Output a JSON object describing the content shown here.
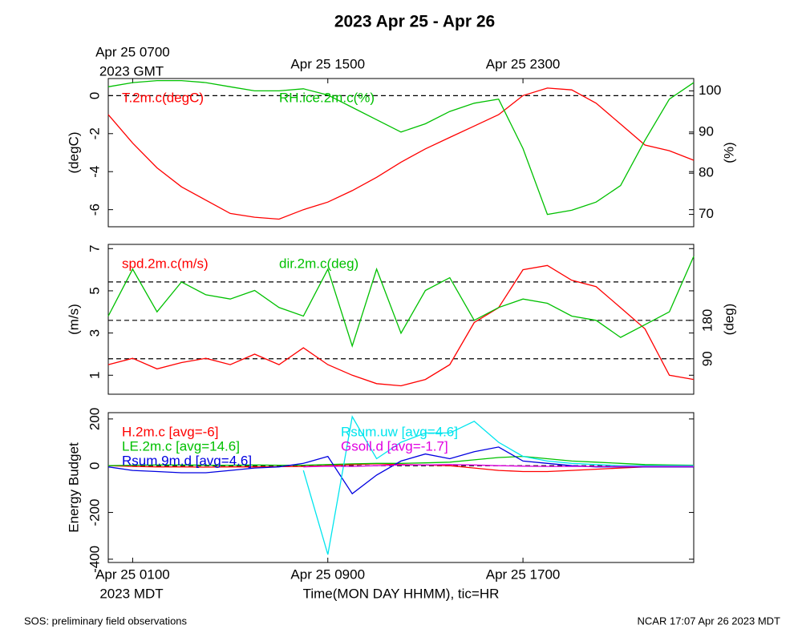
{
  "title": "2023 Apr 25 - Apr 26",
  "footer_left": "SOS: preliminary field observations",
  "footer_right": "NCAR 17:07 Apr 26 2023 MDT",
  "chart_data": [
    {
      "type": "line",
      "ylabel": "(degC)",
      "y2label": "(%)",
      "x": [
        0,
        1,
        2,
        3,
        4,
        5,
        6,
        7,
        8,
        9,
        10,
        11,
        12,
        13,
        14,
        15,
        16,
        17,
        18,
        19,
        20,
        21,
        22,
        23,
        24
      ],
      "xlim": [
        0,
        24
      ],
      "xticks": [
        {
          "value": 1,
          "label": "Apr 25 0700"
        },
        {
          "value": 9,
          "label": "Apr 25 1500"
        },
        {
          "value": 17,
          "label": "Apr 25 2300"
        }
      ],
      "xtick_note": "2023 GMT",
      "ylim": [
        -6.9,
        0.9
      ],
      "yticks": [
        0,
        -2,
        -4,
        -6
      ],
      "y2lim": [
        67,
        103
      ],
      "y2ticks": [
        70,
        80,
        90,
        100
      ],
      "hlines": [
        0
      ],
      "series": [
        {
          "name": "T.2m.c(degC)",
          "color": "#ff0000",
          "values": [
            -1.0,
            -2.5,
            -3.8,
            -4.8,
            -5.5,
            -6.2,
            -6.4,
            -6.5,
            -6.0,
            -5.6,
            -5.0,
            -4.3,
            -3.5,
            -2.8,
            -2.2,
            -1.6,
            -1.0,
            0.0,
            0.4,
            0.3,
            -0.4,
            -1.5,
            -2.6,
            -2.9,
            -3.4
          ]
        },
        {
          "name": "RH.ice.2m.c(%)",
          "color": "#00c000",
          "axis": "y2",
          "values": [
            101,
            102,
            102.5,
            102.5,
            102,
            101,
            100,
            100,
            100.5,
            99,
            96,
            93,
            90,
            92,
            95,
            97,
            98,
            86,
            70,
            71,
            73,
            77,
            88,
            98,
            102
          ]
        }
      ]
    },
    {
      "type": "line",
      "ylabel": "(m/s)",
      "y2label": "(deg)",
      "x": [
        0,
        1,
        2,
        3,
        4,
        5,
        6,
        7,
        8,
        9,
        10,
        11,
        12,
        13,
        14,
        15,
        16,
        17,
        18,
        19,
        20,
        21,
        22,
        23,
        24
      ],
      "xlim": [
        0,
        24
      ],
      "ylim": [
        0.1,
        7.2
      ],
      "yticks": [
        1,
        3,
        5,
        7
      ],
      "y2lim": [
        7,
        358
      ],
      "y2ticks": [
        90,
        180
      ],
      "y2hlines": [
        90,
        180,
        270
      ],
      "series": [
        {
          "name": "spd.2m.c(m/s)",
          "color": "#ff0000",
          "values": [
            1.5,
            1.8,
            1.3,
            1.6,
            1.8,
            1.5,
            2.0,
            1.5,
            2.3,
            1.5,
            1.0,
            0.6,
            0.5,
            0.8,
            1.5,
            3.5,
            4.2,
            6.0,
            6.2,
            5.5,
            5.2,
            4.2,
            3.2,
            1.0,
            0.8
          ]
        },
        {
          "name": "dir.2m.c(deg)",
          "color": "#00c000",
          "axis": "y2",
          "values": [
            190,
            300,
            200,
            270,
            240,
            230,
            250,
            210,
            190,
            300,
            120,
            300,
            150,
            250,
            280,
            180,
            210,
            230,
            220,
            190,
            180,
            140,
            170,
            200,
            330
          ]
        }
      ]
    },
    {
      "type": "line",
      "ylabel": "Energy Budget",
      "xlabel": "Time(MON DAY HHMM), tic=HR",
      "x": [
        0,
        1,
        2,
        3,
        4,
        5,
        6,
        7,
        8,
        9,
        10,
        11,
        12,
        13,
        14,
        15,
        16,
        17,
        18,
        19,
        20,
        21,
        22,
        23,
        24
      ],
      "xlim": [
        0,
        24
      ],
      "xticks": [
        {
          "value": 1,
          "label": "Apr 25 0100"
        },
        {
          "value": 9,
          "label": "Apr 25 0900"
        },
        {
          "value": 17,
          "label": "Apr 25 1700"
        }
      ],
      "xtick_note": "2023 MDT",
      "ylim": [
        -414,
        227
      ],
      "yticks": [
        200,
        0,
        -200,
        -400
      ],
      "hlines": [
        0
      ],
      "series": [
        {
          "name": "H.2m.c [avg=-6]",
          "color": "#ff0000",
          "values": [
            0,
            -3,
            -5,
            -5,
            -6,
            -5,
            -5,
            -4,
            -3,
            0,
            5,
            8,
            5,
            3,
            0,
            -10,
            -20,
            -25,
            -25,
            -20,
            -15,
            -10,
            -5,
            -5,
            -5
          ]
        },
        {
          "name": "LE.2m.c [avg=14.6]",
          "color": "#00c000",
          "values": [
            0,
            2,
            3,
            3,
            2,
            2,
            3,
            2,
            2,
            5,
            8,
            10,
            10,
            12,
            15,
            25,
            35,
            40,
            30,
            20,
            15,
            10,
            5,
            3,
            2
          ]
        },
        {
          "name": "Rsum.9m.d [avg=4.6]",
          "color": "#0000e0",
          "values": [
            -5,
            -20,
            -25,
            -30,
            -30,
            -20,
            -10,
            -5,
            10,
            40,
            -120,
            -40,
            20,
            50,
            30,
            60,
            80,
            20,
            10,
            0,
            -5,
            -5,
            -5,
            -5,
            -5
          ]
        },
        {
          "name": "Rsum.uw [avg=4.6]",
          "color": "#00e5ee",
          "values": [
            null,
            null,
            null,
            null,
            null,
            null,
            null,
            null,
            -20,
            -380,
            210,
            30,
            100,
            140,
            140,
            190,
            100,
            40,
            20,
            10,
            5,
            0,
            0,
            0,
            0
          ]
        },
        {
          "name": "Gsoil.d [avg=-1.7]",
          "color": "#e000e0",
          "values": [
            null,
            null,
            null,
            null,
            null,
            null,
            null,
            null,
            -5,
            -2,
            -3,
            0,
            3,
            3,
            5,
            3,
            0,
            -2,
            -3,
            -3,
            -3,
            -3,
            -3,
            -3,
            -3
          ]
        }
      ]
    }
  ]
}
